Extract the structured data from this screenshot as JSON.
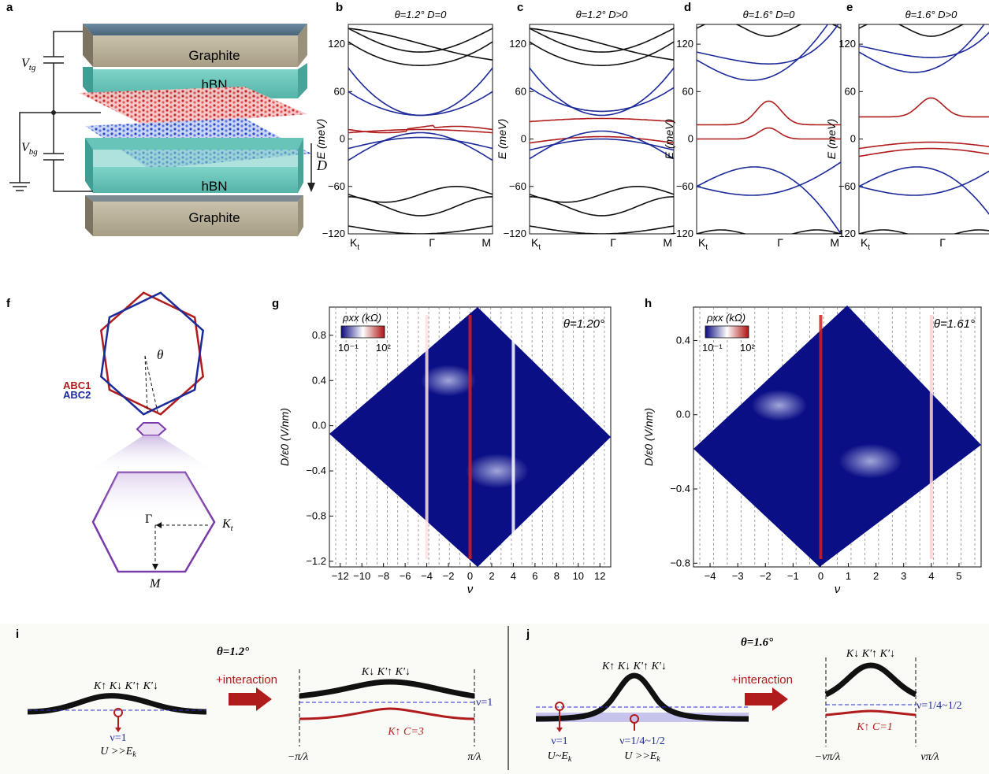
{
  "panel_letters": {
    "a": "a",
    "b": "b",
    "c": "c",
    "d": "d",
    "e": "e",
    "f": "f",
    "g": "g",
    "h": "h",
    "i": "i",
    "j": "j"
  },
  "device": {
    "layer_graphite_top": "Graphite",
    "layer_hbn_top": "hBN",
    "layer_hbn_bottom": "hBN",
    "layer_graphite_bottom": "Graphite",
    "v_tg": "V",
    "v_tg_sub": "tg",
    "v_bg": "V",
    "v_bg_sub": "bg",
    "field": "D"
  },
  "bands": {
    "ylabel": "E (meV)",
    "xticks": [
      "K",
      "Γ",
      "M"
    ],
    "k_sub": "t",
    "panels": [
      {
        "title": "θ=1.2° D=0",
        "yticks": [
          "120",
          "60",
          "0",
          "−60",
          "−120"
        ]
      },
      {
        "title": "θ=1.2° D>0",
        "yticks": [
          "120",
          "60",
          "0",
          "−60",
          "−120"
        ]
      },
      {
        "title": "θ=1.6° D=0",
        "yticks": [
          "120",
          "60",
          "0",
          "−60",
          "−120"
        ]
      },
      {
        "title": "θ=1.6° D>0",
        "yticks": [
          "120",
          "60",
          "0",
          "−60",
          "−120"
        ]
      }
    ],
    "colors": {
      "remote": "#111111",
      "middle": "#1c2a9a",
      "flat": "#b01c1c"
    }
  },
  "moire": {
    "abc1": "ABC1",
    "abc2": "ABC2",
    "theta": "θ",
    "gamma": "Γ",
    "kt": "K",
    "kt_sub": "t",
    "m": "M",
    "color_abc1": "#b01c1c",
    "color_abc2": "#1c2a9a",
    "color_bz": "#7a3aa8"
  },
  "maps": {
    "ylabel": "D/ε0 (V/nm)",
    "xlabel": "ν",
    "colorbar_label": "ρxx (kΩ)",
    "colorbar_min": "10⁻¹",
    "colorbar_max": "10²",
    "g": {
      "theta": "θ=1.20°",
      "xticks": [
        "−12",
        "−10",
        "−8",
        "−6",
        "−4",
        "−2",
        "0",
        "2",
        "4",
        "6",
        "8",
        "10",
        "12"
      ],
      "yticks": [
        "0.8",
        "0.4",
        "0.0",
        "−0.4",
        "−0.8",
        "−1.2"
      ]
    },
    "h": {
      "theta": "θ=1.61°",
      "xticks": [
        "−4",
        "−3",
        "−2",
        "−1",
        "0",
        "1",
        "2",
        "3",
        "4",
        "5"
      ],
      "yticks": [
        "0.4",
        "0.0",
        "−0.4",
        "−0.8"
      ]
    }
  },
  "schematic_i": {
    "theta": "θ=1.2°",
    "left_label": "K↑ K↓ K′↑ K′↓",
    "arrow": "+interaction",
    "nu": "ν=1",
    "u": "U >>E",
    "u_sub": "k",
    "right_top": "K↓ K′↑ K′↓",
    "right_bottom": "K↑ C=3",
    "nu_right": "ν=1",
    "pi_left": "−π/λ",
    "pi_right": "π/λ"
  },
  "schematic_j": {
    "theta": "θ=1.6°",
    "left_label": "K↑ K↓ K′↑ K′↓",
    "arrow": "+interaction",
    "nu1": "ν=1",
    "u1": "U~E",
    "u1_sub": "k",
    "nu2": "ν=1/4~1/2",
    "u2": "U >>E",
    "u2_sub": "k",
    "right_top": "K↓ K′↑ K′↓",
    "right_bottom": "K↑ C=1",
    "nu_right": "ν=1/4~1/2",
    "pi_left": "−νπ/λ",
    "pi_right": "νπ/λ"
  }
}
